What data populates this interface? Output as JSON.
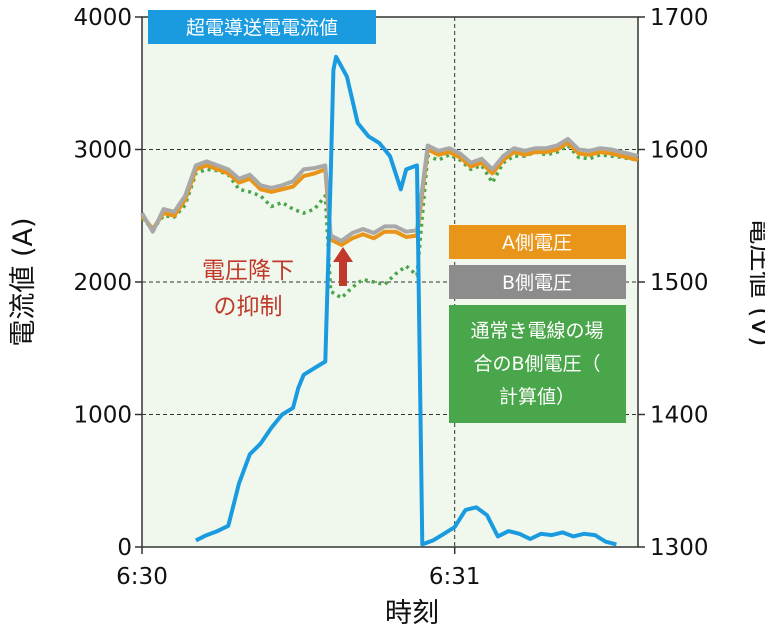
{
  "chart_data": {
    "type": "line",
    "xlabel": "時刻",
    "ylabel_left": "電流値 (A)",
    "ylabel_right": "電圧値 (V)",
    "x_ticks": [
      "6:30",
      "6:31"
    ],
    "x_range_seconds": [
      0,
      92
    ],
    "x_tick_seconds": [
      0,
      58
    ],
    "y_left_ticks": [
      "0",
      "1000",
      "2000",
      "3000",
      "4000"
    ],
    "y_left_range": [
      0,
      4000
    ],
    "y_right_ticks": [
      "1300",
      "1400",
      "1500",
      "1600",
      "1700"
    ],
    "y_right_range": [
      1300,
      1700
    ],
    "grid": "dashed at 1000, 2000, 3000 and at 6:31",
    "series": [
      {
        "name": "超電導送電電流値",
        "axis": "left",
        "color": "#1a9be0",
        "points": [
          [
            10,
            50
          ],
          [
            12,
            90
          ],
          [
            14,
            120
          ],
          [
            16,
            160
          ],
          [
            18,
            480
          ],
          [
            20,
            700
          ],
          [
            22,
            780
          ],
          [
            24,
            900
          ],
          [
            26,
            1000
          ],
          [
            28,
            1050
          ],
          [
            29,
            1200
          ],
          [
            30,
            1300
          ],
          [
            32,
            1350
          ],
          [
            34,
            1400
          ],
          [
            35,
            2800
          ],
          [
            35.5,
            3600
          ],
          [
            36,
            3700
          ],
          [
            38,
            3550
          ],
          [
            40,
            3200
          ],
          [
            42,
            3100
          ],
          [
            44,
            3050
          ],
          [
            46,
            2950
          ],
          [
            48,
            2700
          ],
          [
            49,
            2850
          ],
          [
            51,
            2880
          ],
          [
            52,
            20
          ],
          [
            54,
            50
          ],
          [
            56,
            100
          ],
          [
            58,
            150
          ],
          [
            60,
            280
          ],
          [
            62,
            300
          ],
          [
            64,
            240
          ],
          [
            66,
            80
          ],
          [
            68,
            120
          ],
          [
            70,
            100
          ],
          [
            72,
            60
          ],
          [
            74,
            100
          ],
          [
            76,
            90
          ],
          [
            78,
            110
          ],
          [
            80,
            80
          ],
          [
            82,
            100
          ],
          [
            84,
            90
          ],
          [
            86,
            40
          ],
          [
            88,
            20
          ]
        ]
      },
      {
        "name": "A側電圧",
        "axis": "right",
        "color": "#e8951a",
        "points": [
          [
            0,
            1550
          ],
          [
            2,
            1540
          ],
          [
            4,
            1552
          ],
          [
            6,
            1550
          ],
          [
            8,
            1562
          ],
          [
            10,
            1585
          ],
          [
            12,
            1588
          ],
          [
            14,
            1585
          ],
          [
            16,
            1582
          ],
          [
            18,
            1575
          ],
          [
            20,
            1578
          ],
          [
            22,
            1570
          ],
          [
            24,
            1568
          ],
          [
            26,
            1570
          ],
          [
            28,
            1572
          ],
          [
            30,
            1580
          ],
          [
            32,
            1582
          ],
          [
            34,
            1585
          ],
          [
            35,
            1532
          ],
          [
            37,
            1528
          ],
          [
            39,
            1533
          ],
          [
            41,
            1536
          ],
          [
            43,
            1533
          ],
          [
            45,
            1538
          ],
          [
            47,
            1538
          ],
          [
            49,
            1534
          ],
          [
            51,
            1535
          ],
          [
            53,
            1600
          ],
          [
            55,
            1596
          ],
          [
            57,
            1598
          ],
          [
            59,
            1594
          ],
          [
            61,
            1587
          ],
          [
            63,
            1590
          ],
          [
            65,
            1582
          ],
          [
            67,
            1592
          ],
          [
            69,
            1598
          ],
          [
            71,
            1596
          ],
          [
            73,
            1598
          ],
          [
            75,
            1598
          ],
          [
            77,
            1600
          ],
          [
            79,
            1605
          ],
          [
            81,
            1597
          ],
          [
            83,
            1596
          ],
          [
            85,
            1598
          ],
          [
            87,
            1597
          ],
          [
            89,
            1595
          ],
          [
            92,
            1592
          ]
        ]
      },
      {
        "name": "B側電圧",
        "axis": "right",
        "color": "#a8a8a8",
        "points": [
          [
            0,
            1552
          ],
          [
            2,
            1538
          ],
          [
            4,
            1555
          ],
          [
            6,
            1553
          ],
          [
            8,
            1565
          ],
          [
            10,
            1588
          ],
          [
            12,
            1591
          ],
          [
            14,
            1588
          ],
          [
            16,
            1585
          ],
          [
            18,
            1578
          ],
          [
            20,
            1581
          ],
          [
            22,
            1573
          ],
          [
            24,
            1571
          ],
          [
            26,
            1573
          ],
          [
            28,
            1576
          ],
          [
            30,
            1585
          ],
          [
            32,
            1586
          ],
          [
            34,
            1588
          ],
          [
            35,
            1535
          ],
          [
            37,
            1531
          ],
          [
            39,
            1537
          ],
          [
            41,
            1540
          ],
          [
            43,
            1537
          ],
          [
            45,
            1542
          ],
          [
            47,
            1542
          ],
          [
            49,
            1538
          ],
          [
            51,
            1539
          ],
          [
            53,
            1603
          ],
          [
            55,
            1599
          ],
          [
            57,
            1601
          ],
          [
            59,
            1597
          ],
          [
            61,
            1590
          ],
          [
            63,
            1593
          ],
          [
            65,
            1585
          ],
          [
            67,
            1595
          ],
          [
            69,
            1601
          ],
          [
            71,
            1599
          ],
          [
            73,
            1601
          ],
          [
            75,
            1601
          ],
          [
            77,
            1603
          ],
          [
            79,
            1608
          ],
          [
            81,
            1600
          ],
          [
            83,
            1599
          ],
          [
            85,
            1601
          ],
          [
            87,
            1600
          ],
          [
            89,
            1598
          ],
          [
            92,
            1595
          ]
        ]
      },
      {
        "name": "通常き電線の場合のB側電圧（計算値）",
        "axis": "right",
        "color": "#4aa64a",
        "dashed": true,
        "points": [
          [
            0,
            1548
          ],
          [
            2,
            1540
          ],
          [
            4,
            1550
          ],
          [
            6,
            1549
          ],
          [
            8,
            1558
          ],
          [
            10,
            1582
          ],
          [
            12,
            1585
          ],
          [
            14,
            1584
          ],
          [
            16,
            1581
          ],
          [
            18,
            1570
          ],
          [
            20,
            1568
          ],
          [
            22,
            1565
          ],
          [
            24,
            1557
          ],
          [
            26,
            1560
          ],
          [
            28,
            1555
          ],
          [
            30,
            1552
          ],
          [
            32,
            1555
          ],
          [
            34,
            1565
          ],
          [
            35,
            1493
          ],
          [
            37,
            1488
          ],
          [
            39,
            1496
          ],
          [
            41,
            1502
          ],
          [
            43,
            1500
          ],
          [
            45,
            1498
          ],
          [
            47,
            1506
          ],
          [
            49,
            1512
          ],
          [
            51,
            1505
          ],
          [
            53,
            1595
          ],
          [
            55,
            1592
          ],
          [
            57,
            1596
          ],
          [
            59,
            1592
          ],
          [
            61,
            1585
          ],
          [
            63,
            1588
          ],
          [
            65,
            1575
          ],
          [
            67,
            1590
          ],
          [
            69,
            1595
          ],
          [
            71,
            1595
          ],
          [
            73,
            1598
          ],
          [
            75,
            1596
          ],
          [
            77,
            1598
          ],
          [
            79,
            1603
          ],
          [
            81,
            1594
          ],
          [
            83,
            1593
          ],
          [
            85,
            1596
          ],
          [
            87,
            1595
          ],
          [
            89,
            1594
          ],
          [
            92,
            1592
          ]
        ]
      }
    ],
    "annotations": [
      "電圧降下",
      "の抑制"
    ]
  }
}
